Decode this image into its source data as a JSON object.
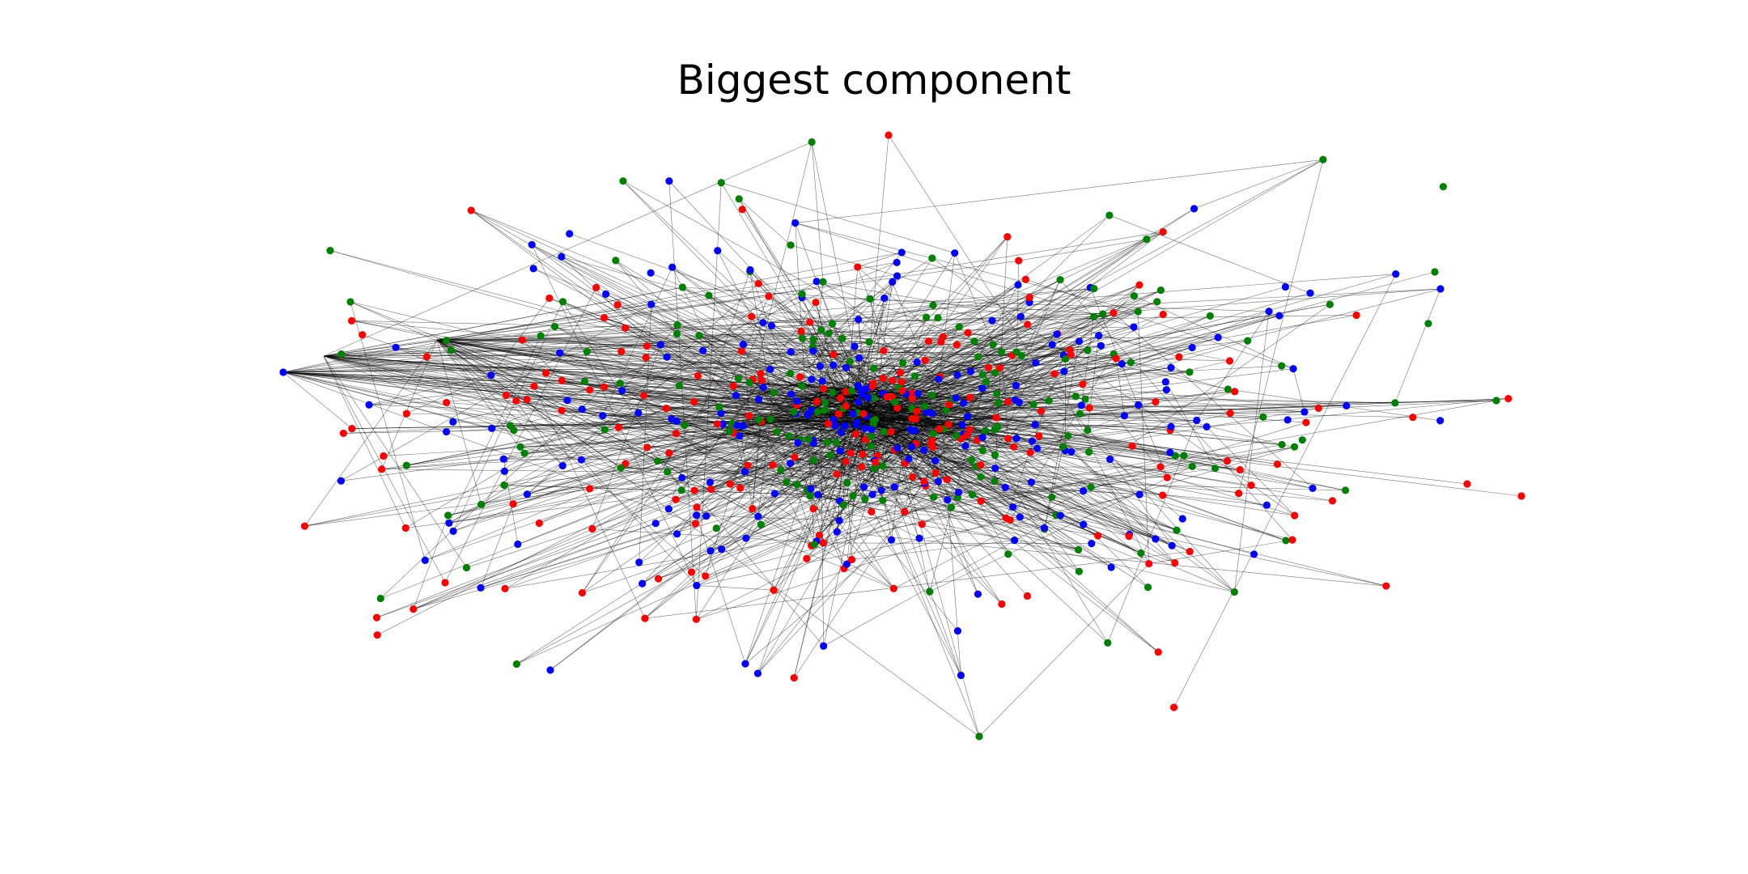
{
  "figure": {
    "title": "Biggest component"
  },
  "graph": {
    "node_colors": {
      "red": "#ff0000",
      "green": "#008000",
      "blue": "#0000ff"
    },
    "edge_color": "#000000",
    "layout": "force-directed",
    "node_count_visible_approx": 650
  }
}
